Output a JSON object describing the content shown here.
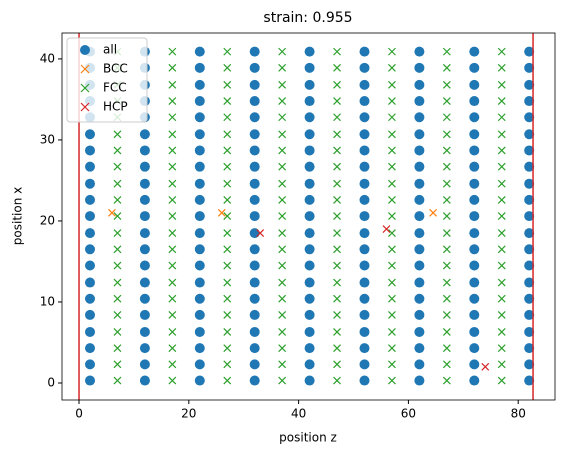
{
  "chart_data": {
    "type": "scatter",
    "title": "strain: 0.955",
    "x_label": "position z",
    "y_label": "position x",
    "xlim": [
      -3.1,
      86.7
    ],
    "ylim": [
      -2.1,
      43.2
    ],
    "xticks": [
      0,
      20,
      40,
      60,
      80
    ],
    "yticks": [
      0,
      10,
      20,
      30,
      40
    ],
    "legend": "upper left",
    "vlines": [
      0,
      82.7
    ],
    "vline_color": "#d62728",
    "series": [
      {
        "name": "all",
        "color": "#1f77b4",
        "marker": "circle",
        "x": [
          2,
          12,
          22,
          32,
          42,
          52,
          62,
          72,
          82,
          2,
          12,
          22,
          32,
          42,
          52,
          62,
          72,
          82,
          2,
          12,
          22,
          32,
          42,
          52,
          62,
          72,
          82,
          2,
          12,
          22,
          32,
          42,
          52,
          62,
          72,
          82,
          2,
          12,
          22,
          32,
          42,
          52,
          62,
          72,
          82,
          2,
          12,
          22,
          32,
          42,
          52,
          62,
          72,
          82,
          2,
          12,
          22,
          32,
          42,
          52,
          62,
          72,
          82,
          2,
          12,
          22,
          32,
          42,
          52,
          62,
          72,
          82,
          2,
          12,
          22,
          32,
          42,
          52,
          62,
          72,
          82,
          2,
          12,
          22,
          32,
          42,
          52,
          62,
          72,
          82,
          2,
          12,
          22,
          32,
          42,
          52,
          62,
          72,
          82,
          2,
          12,
          22,
          32,
          42,
          52,
          62,
          72,
          82,
          2,
          12,
          22,
          32,
          42,
          52,
          62,
          72,
          82,
          2,
          12,
          22,
          32,
          42,
          52,
          62,
          72,
          82,
          2,
          12,
          22,
          32,
          42,
          52,
          62,
          72,
          82,
          2,
          12,
          22,
          32,
          42,
          52,
          62,
          72,
          82,
          2,
          12,
          22,
          32,
          42,
          52,
          62,
          72,
          82,
          2,
          12,
          22,
          32,
          42,
          52,
          62,
          72,
          82,
          2,
          12,
          22,
          32,
          42,
          52,
          62,
          72,
          82,
          2,
          12,
          22,
          32,
          42,
          52,
          62,
          72,
          82,
          2,
          12,
          22,
          32,
          42,
          52,
          62,
          72,
          82
        ],
        "y": [
          0.3,
          0.3,
          0.3,
          0.3,
          0.3,
          0.3,
          0.3,
          0.3,
          0.3,
          2.3,
          2.3,
          2.3,
          2.3,
          2.3,
          2.3,
          2.3,
          2.3,
          2.3,
          4.3,
          4.3,
          4.3,
          4.3,
          4.3,
          4.3,
          4.3,
          4.3,
          4.3,
          6.3,
          6.3,
          6.3,
          6.3,
          6.3,
          6.3,
          6.3,
          6.3,
          6.3,
          8.4,
          8.4,
          8.4,
          8.4,
          8.4,
          8.4,
          8.4,
          8.4,
          8.4,
          10.4,
          10.4,
          10.4,
          10.4,
          10.4,
          10.4,
          10.4,
          10.4,
          10.4,
          12.4,
          12.4,
          12.4,
          12.4,
          12.4,
          12.4,
          12.4,
          12.4,
          12.4,
          14.5,
          14.5,
          14.5,
          14.5,
          14.5,
          14.5,
          14.5,
          14.5,
          14.5,
          16.5,
          16.5,
          16.5,
          16.5,
          16.5,
          16.5,
          16.5,
          16.5,
          16.5,
          18.5,
          18.5,
          18.5,
          18.5,
          18.5,
          18.5,
          18.5,
          18.5,
          18.5,
          20.6,
          20.6,
          20.6,
          20.6,
          20.6,
          20.6,
          20.6,
          20.6,
          20.6,
          22.6,
          22.6,
          22.6,
          22.6,
          22.6,
          22.6,
          22.6,
          22.6,
          22.6,
          24.6,
          24.6,
          24.6,
          24.6,
          24.6,
          24.6,
          24.6,
          24.6,
          24.6,
          26.7,
          26.7,
          26.7,
          26.7,
          26.7,
          26.7,
          26.7,
          26.7,
          26.7,
          28.7,
          28.7,
          28.7,
          28.7,
          28.7,
          28.7,
          28.7,
          28.7,
          28.7,
          30.7,
          30.7,
          30.7,
          30.7,
          30.7,
          30.7,
          30.7,
          30.7,
          30.7,
          32.8,
          32.8,
          32.8,
          32.8,
          32.8,
          32.8,
          32.8,
          32.8,
          32.8,
          34.8,
          34.8,
          34.8,
          34.8,
          34.8,
          34.8,
          34.8,
          34.8,
          34.8,
          36.8,
          36.8,
          36.8,
          36.8,
          36.8,
          36.8,
          36.8,
          36.8,
          36.8,
          38.9,
          38.9,
          38.9,
          38.9,
          38.9,
          38.9,
          38.9,
          38.9,
          38.9,
          40.9,
          40.9,
          40.9,
          40.9,
          40.9,
          40.9,
          40.9,
          40.9,
          40.9
        ]
      },
      {
        "name": "BCC",
        "color": "#ff7f0e",
        "marker": "x",
        "x": [
          6,
          26,
          64.5
        ],
        "y": [
          21,
          21,
          21
        ]
      },
      {
        "name": "FCC",
        "color": "#2ca02c",
        "marker": "x",
        "x": [
          7,
          17,
          27,
          37,
          47,
          57,
          67,
          77,
          7,
          17,
          27,
          37,
          47,
          57,
          67,
          77,
          7,
          17,
          27,
          37,
          47,
          57,
          67,
          77,
          7,
          17,
          27,
          37,
          47,
          57,
          67,
          77,
          7,
          17,
          27,
          37,
          47,
          57,
          67,
          77,
          7,
          17,
          27,
          37,
          47,
          57,
          67,
          77,
          7,
          17,
          27,
          37,
          47,
          57,
          67,
          77,
          7,
          17,
          27,
          37,
          47,
          57,
          67,
          77,
          7,
          17,
          27,
          37,
          47,
          57,
          67,
          77,
          7,
          17,
          27,
          37,
          47,
          57,
          67,
          77,
          7,
          17,
          27,
          37,
          47,
          57,
          67,
          77,
          7,
          17,
          27,
          37,
          47,
          57,
          67,
          77,
          7,
          17,
          27,
          37,
          47,
          57,
          67,
          77,
          7,
          17,
          27,
          37,
          47,
          57,
          67,
          77,
          7,
          17,
          27,
          37,
          47,
          57,
          67,
          77,
          7,
          17,
          27,
          37,
          47,
          57,
          67,
          77,
          7,
          17,
          27,
          37,
          47,
          57,
          67,
          77,
          7,
          17,
          27,
          37,
          47,
          57,
          67,
          77,
          7,
          17,
          27,
          37,
          47,
          57,
          67,
          77,
          7,
          17,
          27,
          37,
          47,
          57,
          67,
          77,
          7,
          17,
          27,
          37,
          47,
          57,
          67,
          77
        ],
        "y": [
          0.3,
          0.3,
          0.3,
          0.3,
          0.3,
          0.3,
          0.3,
          0.3,
          2.3,
          2.3,
          2.3,
          2.3,
          2.3,
          2.3,
          2.3,
          2.3,
          4.3,
          4.3,
          4.3,
          4.3,
          4.3,
          4.3,
          4.3,
          4.3,
          6.3,
          6.3,
          6.3,
          6.3,
          6.3,
          6.3,
          6.3,
          6.3,
          8.4,
          8.4,
          8.4,
          8.4,
          8.4,
          8.4,
          8.4,
          8.4,
          10.4,
          10.4,
          10.4,
          10.4,
          10.4,
          10.4,
          10.4,
          10.4,
          12.4,
          12.4,
          12.4,
          12.4,
          12.4,
          12.4,
          12.4,
          12.4,
          14.5,
          14.5,
          14.5,
          14.5,
          14.5,
          14.5,
          14.5,
          14.5,
          16.5,
          16.5,
          16.5,
          16.5,
          16.5,
          16.5,
          16.5,
          16.5,
          18.5,
          18.5,
          18.5,
          18.5,
          18.5,
          18.5,
          18.5,
          18.5,
          20.6,
          20.6,
          20.6,
          20.6,
          20.6,
          20.6,
          20.6,
          20.6,
          22.6,
          22.6,
          22.6,
          22.6,
          22.6,
          22.6,
          22.6,
          22.6,
          24.6,
          24.6,
          24.6,
          24.6,
          24.6,
          24.6,
          24.6,
          24.6,
          26.7,
          26.7,
          26.7,
          26.7,
          26.7,
          26.7,
          26.7,
          26.7,
          28.7,
          28.7,
          28.7,
          28.7,
          28.7,
          28.7,
          28.7,
          28.7,
          30.7,
          30.7,
          30.7,
          30.7,
          30.7,
          30.7,
          30.7,
          30.7,
          32.8,
          32.8,
          32.8,
          32.8,
          32.8,
          32.8,
          32.8,
          32.8,
          34.8,
          34.8,
          34.8,
          34.8,
          34.8,
          34.8,
          34.8,
          34.8,
          36.8,
          36.8,
          36.8,
          36.8,
          36.8,
          36.8,
          36.8,
          36.8,
          38.9,
          38.9,
          38.9,
          38.9,
          38.9,
          38.9,
          38.9,
          38.9,
          40.9,
          40.9,
          40.9,
          40.9,
          40.9,
          40.9,
          40.9,
          40.9
        ]
      },
      {
        "name": "HCP",
        "color": "#d62728",
        "marker": "x",
        "x": [
          33,
          56,
          74
        ],
        "y": [
          18.5,
          19,
          2
        ]
      }
    ]
  }
}
